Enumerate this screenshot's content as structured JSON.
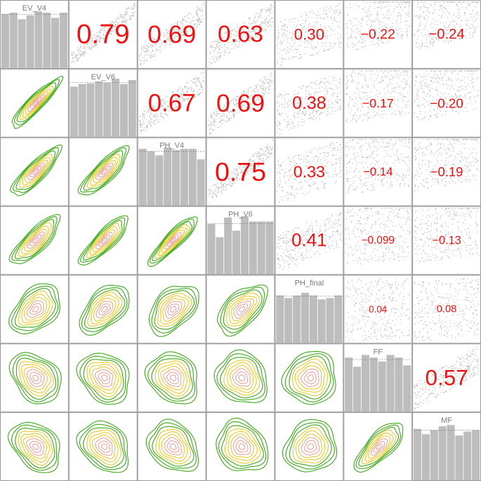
{
  "chart_data": {
    "type": "scatterplot-matrix",
    "variables": [
      "EV_V4",
      "EV_V6",
      "PH_V4",
      "PH_V6",
      "PH_final",
      "FF",
      "MF"
    ],
    "histograms": [
      [
        0.82,
        0.84,
        0.74,
        0.8,
        0.86,
        0.84,
        0.76,
        0.84
      ],
      [
        0.76,
        0.8,
        0.81,
        0.84,
        0.82,
        0.88,
        0.8,
        0.86
      ],
      [
        0.86,
        0.82,
        0.76,
        0.88,
        0.84,
        0.86,
        0.86,
        0.7
      ],
      [
        0.76,
        0.56,
        0.86,
        0.66,
        0.88,
        0.8,
        0.8,
        0.8
      ],
      [
        0.72,
        0.68,
        0.72,
        0.76,
        0.72,
        0.66,
        0.68,
        0.72
      ],
      [
        0.82,
        0.68,
        0.86,
        0.82,
        0.76,
        0.86,
        0.82,
        0.7
      ],
      [
        0.78,
        0.7,
        0.76,
        0.82,
        0.84,
        0.68,
        0.74,
        0.76
      ]
    ],
    "correlations": [
      {
        "row": 1,
        "col": 2,
        "value": "0.79"
      },
      {
        "row": 1,
        "col": 3,
        "value": "0.69"
      },
      {
        "row": 1,
        "col": 4,
        "value": "0.63"
      },
      {
        "row": 1,
        "col": 5,
        "value": "0.30"
      },
      {
        "row": 1,
        "col": 6,
        "value": "−0.22"
      },
      {
        "row": 1,
        "col": 7,
        "value": "−0.24"
      },
      {
        "row": 2,
        "col": 3,
        "value": "0.67"
      },
      {
        "row": 2,
        "col": 4,
        "value": "0.69"
      },
      {
        "row": 2,
        "col": 5,
        "value": "0.38"
      },
      {
        "row": 2,
        "col": 6,
        "value": "−0.17"
      },
      {
        "row": 2,
        "col": 7,
        "value": "−0.20"
      },
      {
        "row": 3,
        "col": 4,
        "value": "0.75"
      },
      {
        "row": 3,
        "col": 5,
        "value": "0.33"
      },
      {
        "row": 3,
        "col": 6,
        "value": "−0.14"
      },
      {
        "row": 3,
        "col": 7,
        "value": "−0.19"
      },
      {
        "row": 4,
        "col": 5,
        "value": "0.41"
      },
      {
        "row": 4,
        "col": 6,
        "value": "−0.099"
      },
      {
        "row": 4,
        "col": 7,
        "value": "−0.13"
      },
      {
        "row": 5,
        "col": 6,
        "value": "0.04"
      },
      {
        "row": 5,
        "col": 7,
        "value": "0.08"
      },
      {
        "row": 6,
        "col": 7,
        "value": "0.57"
      }
    ],
    "colors": {
      "correlation_text": "#ee1111",
      "scatter": "#b4b4b4",
      "histogram": "#bdbdbd",
      "contour_outer": "#44aa22",
      "contour_mid": "#e8cc33",
      "contour_inner": "#e8a8a0",
      "contour_core": "#ffffff"
    },
    "grid": false
  }
}
